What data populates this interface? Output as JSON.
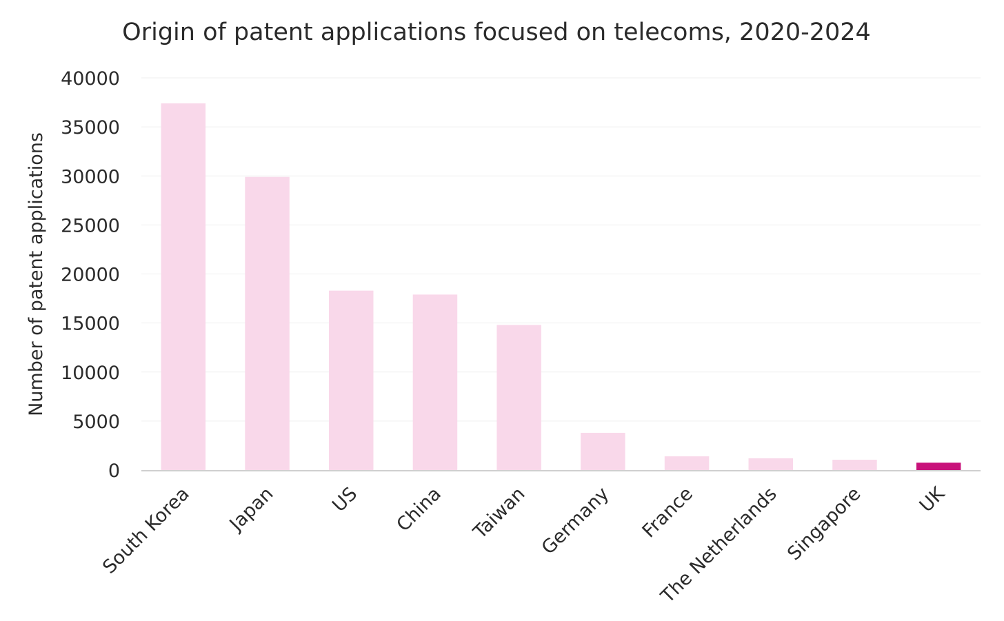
{
  "chart_data": {
    "type": "bar",
    "title": "Origin of patent applications focused on telecoms, 2020-2024",
    "xlabel": "",
    "ylabel": "Number of patent applications",
    "categories": [
      "South Korea",
      "Japan",
      "US",
      "China",
      "Taiwan",
      "Germany",
      "France",
      "The Netherlands",
      "Singapore",
      "UK"
    ],
    "values": [
      37400,
      29900,
      18300,
      17900,
      14800,
      3800,
      1400,
      1200,
      1050,
      750
    ],
    "ylim": [
      0,
      40000
    ],
    "yticks": [
      0,
      5000,
      10000,
      15000,
      20000,
      25000,
      30000,
      35000,
      40000
    ],
    "grid": true,
    "legend": "none",
    "colors": {
      "bar": "#f9d8ea",
      "highlight": "#c8127a",
      "text": "#2b2b2b",
      "grid": "#efefef",
      "axis": "#cfcfcf"
    },
    "highlight_category": "UK"
  }
}
